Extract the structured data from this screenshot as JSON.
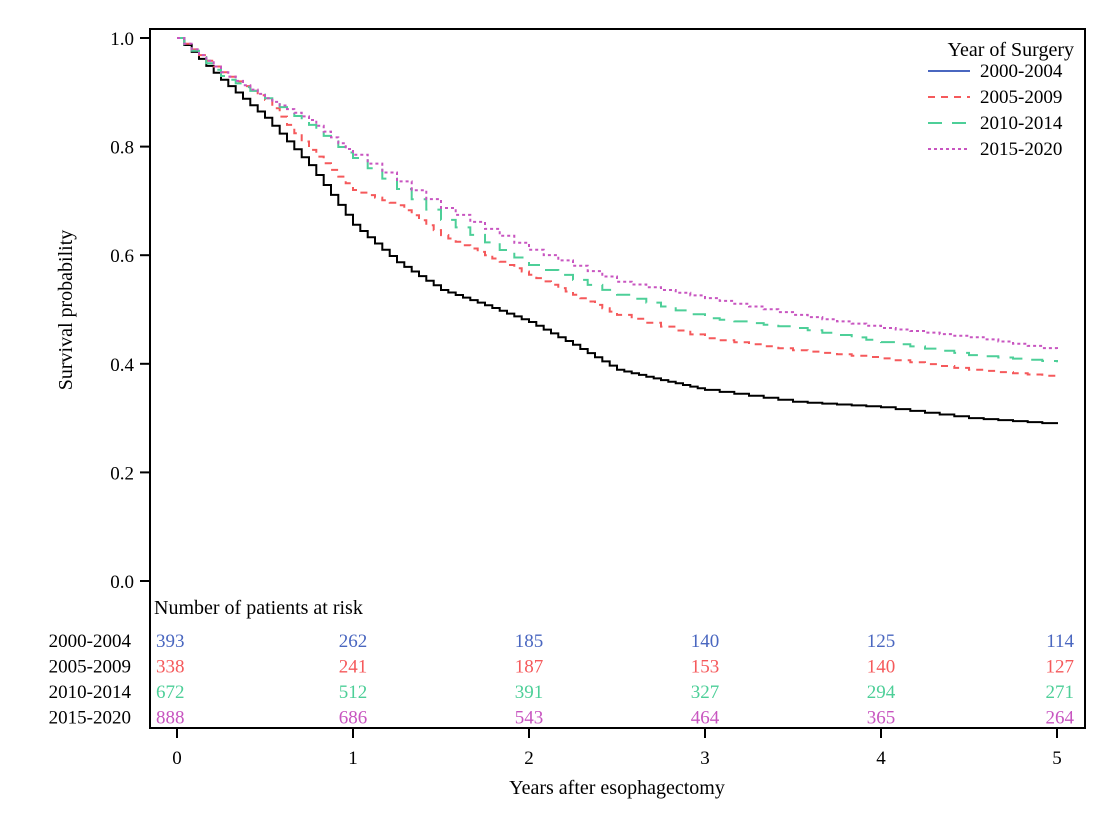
{
  "chart_data": {
    "type": "line",
    "subtype": "kaplan-meier step curves",
    "xlabel": "Years after esophagectomy",
    "ylabel": "Survival probability",
    "xlim": [
      0,
      5
    ],
    "ylim": [
      0,
      1
    ],
    "x_ticks": [
      "0",
      "1",
      "2",
      "3",
      "4",
      "5"
    ],
    "y_ticks": [
      "0.0",
      "0.2",
      "0.4",
      "0.6",
      "0.8",
      "1.0"
    ],
    "grid": false,
    "legend": {
      "title": "Year of Surgery",
      "placement": "top-right"
    },
    "series": [
      {
        "name": "2000-2004",
        "color": "#4a67c0",
        "line_color": "#000000",
        "dash": "solid",
        "x": [
          0,
          0.25,
          0.5,
          0.75,
          1,
          1.25,
          1.5,
          1.75,
          2,
          2.25,
          2.5,
          2.75,
          3,
          3.5,
          4,
          4.5,
          5
        ],
        "y": [
          1.0,
          0.923,
          0.853,
          0.766,
          0.656,
          0.587,
          0.536,
          0.508,
          0.477,
          0.435,
          0.389,
          0.37,
          0.352,
          0.33,
          0.32,
          0.3,
          0.289
        ]
      },
      {
        "name": "2005-2009",
        "color": "#f5595b",
        "dash": "short-dash",
        "x": [
          0,
          0.25,
          0.5,
          0.75,
          1,
          1.25,
          1.5,
          1.75,
          2,
          2.25,
          2.5,
          3,
          3.5,
          4,
          4.5,
          5
        ],
        "y": [
          1.0,
          0.937,
          0.886,
          0.794,
          0.72,
          0.692,
          0.637,
          0.6,
          0.564,
          0.527,
          0.49,
          0.447,
          0.425,
          0.41,
          0.389,
          0.376
        ]
      },
      {
        "name": "2010-2014",
        "color": "#4dcf98",
        "dash": "long-dash",
        "x": [
          0,
          0.25,
          0.5,
          0.75,
          1,
          1.5,
          2,
          2.5,
          3,
          3.5,
          4,
          4.5,
          5
        ],
        "y": [
          1.0,
          0.93,
          0.889,
          0.84,
          0.779,
          0.665,
          0.582,
          0.527,
          0.484,
          0.466,
          0.44,
          0.416,
          0.403
        ]
      },
      {
        "name": "2015-2020",
        "color": "#c855c0",
        "dash": "dotted",
        "x": [
          0,
          0.25,
          0.5,
          0.75,
          1,
          1.5,
          2,
          2.5,
          3,
          3.5,
          4,
          4.5,
          5
        ],
        "y": [
          1.0,
          0.937,
          0.889,
          0.849,
          0.785,
          0.687,
          0.61,
          0.551,
          0.521,
          0.49,
          0.466,
          0.449,
          0.425
        ]
      }
    ],
    "risk_table": {
      "title": "Number of patients at risk",
      "times": [
        0,
        1,
        2,
        3,
        4,
        5
      ],
      "rows": [
        {
          "label": "2000-2004",
          "values": [
            "393",
            "262",
            "185",
            "140",
            "125",
            "114"
          ]
        },
        {
          "label": "2005-2009",
          "values": [
            "338",
            "241",
            "187",
            "153",
            "140",
            "127"
          ]
        },
        {
          "label": "2010-2014",
          "values": [
            "672",
            "512",
            "391",
            "327",
            "294",
            "271"
          ]
        },
        {
          "label": "2015-2020",
          "values": [
            "888",
            "686",
            "543",
            "464",
            "365",
            "264"
          ]
        }
      ]
    }
  }
}
